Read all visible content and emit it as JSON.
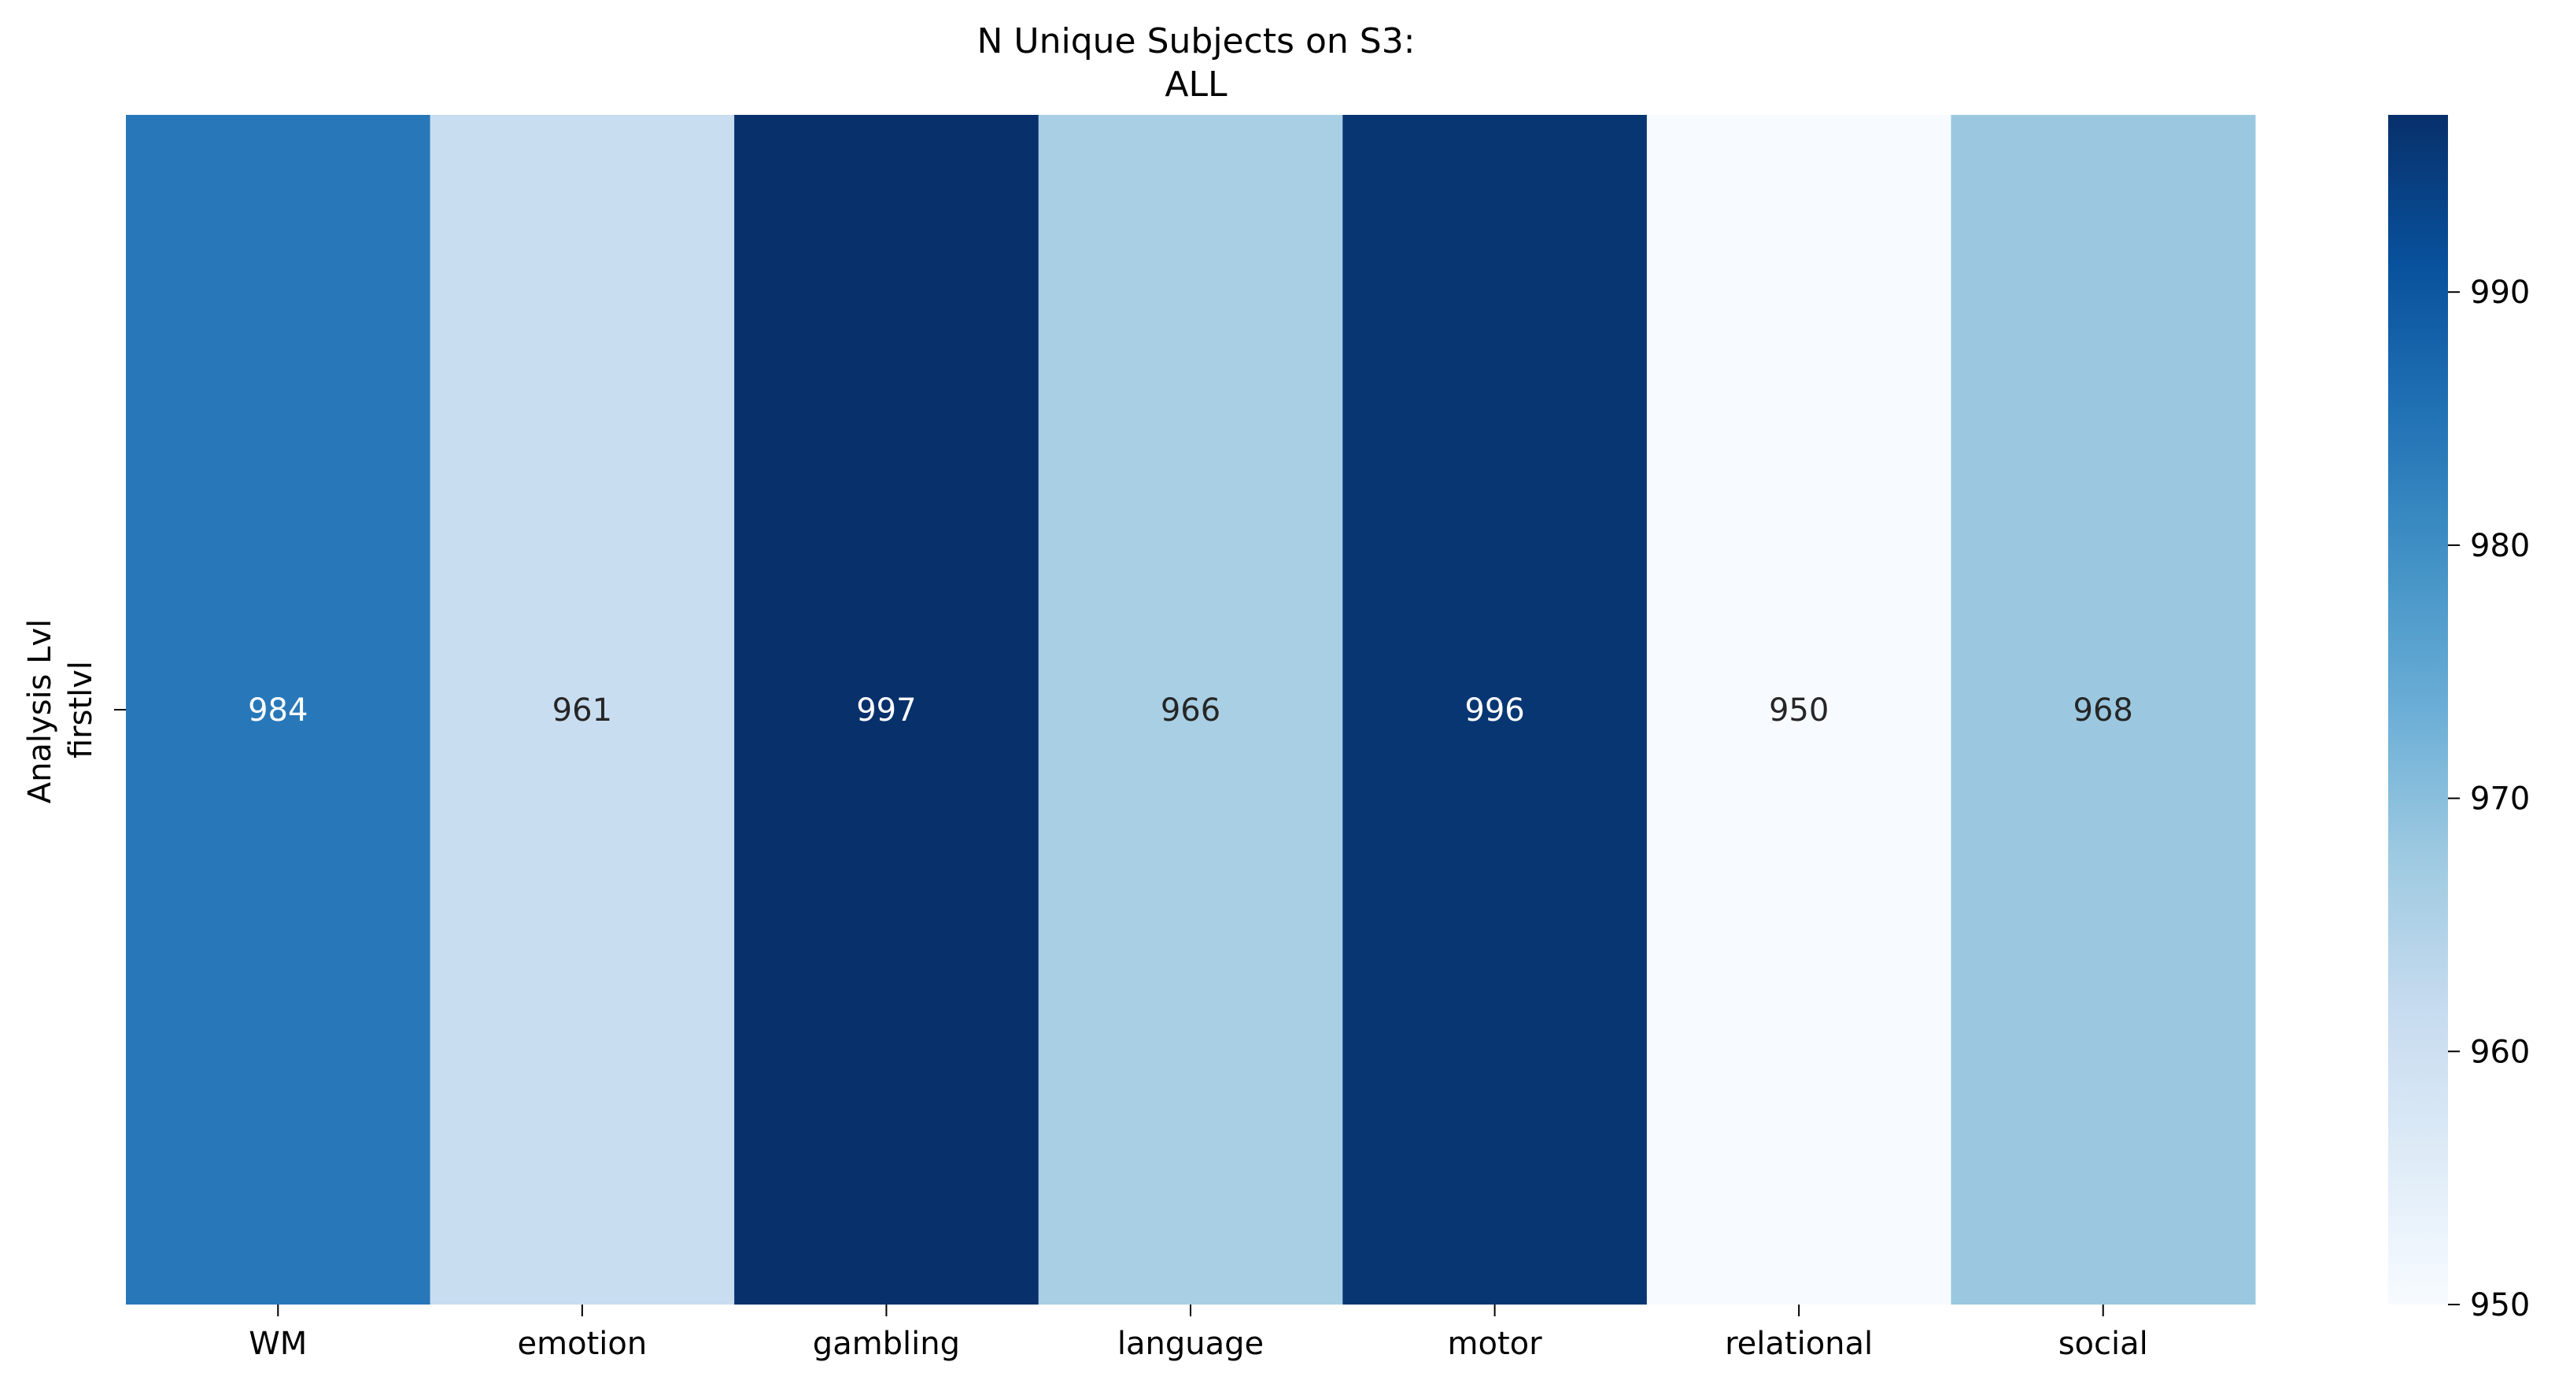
{
  "chart_data": {
    "type": "heatmap",
    "title": "N Unique Subjects on S3:",
    "subtitle": "ALL",
    "xlabel": "",
    "ylabel": "Analysis Lvl",
    "x_categories": [
      "WM",
      "emotion",
      "gambling",
      "language",
      "motor",
      "relational",
      "social"
    ],
    "y_categories": [
      "firstlvl"
    ],
    "values": [
      [
        984,
        961,
        997,
        966,
        996,
        950,
        968
      ]
    ],
    "colormap": "Blues",
    "colorbar": {
      "range": [
        950,
        997
      ],
      "ticks": [
        950,
        960,
        970,
        980,
        990
      ]
    },
    "annotations": true,
    "grid": false
  },
  "colors": {
    "annotation_light": "#ffffff",
    "annotation_dark": "#262626",
    "text": "#000000"
  }
}
